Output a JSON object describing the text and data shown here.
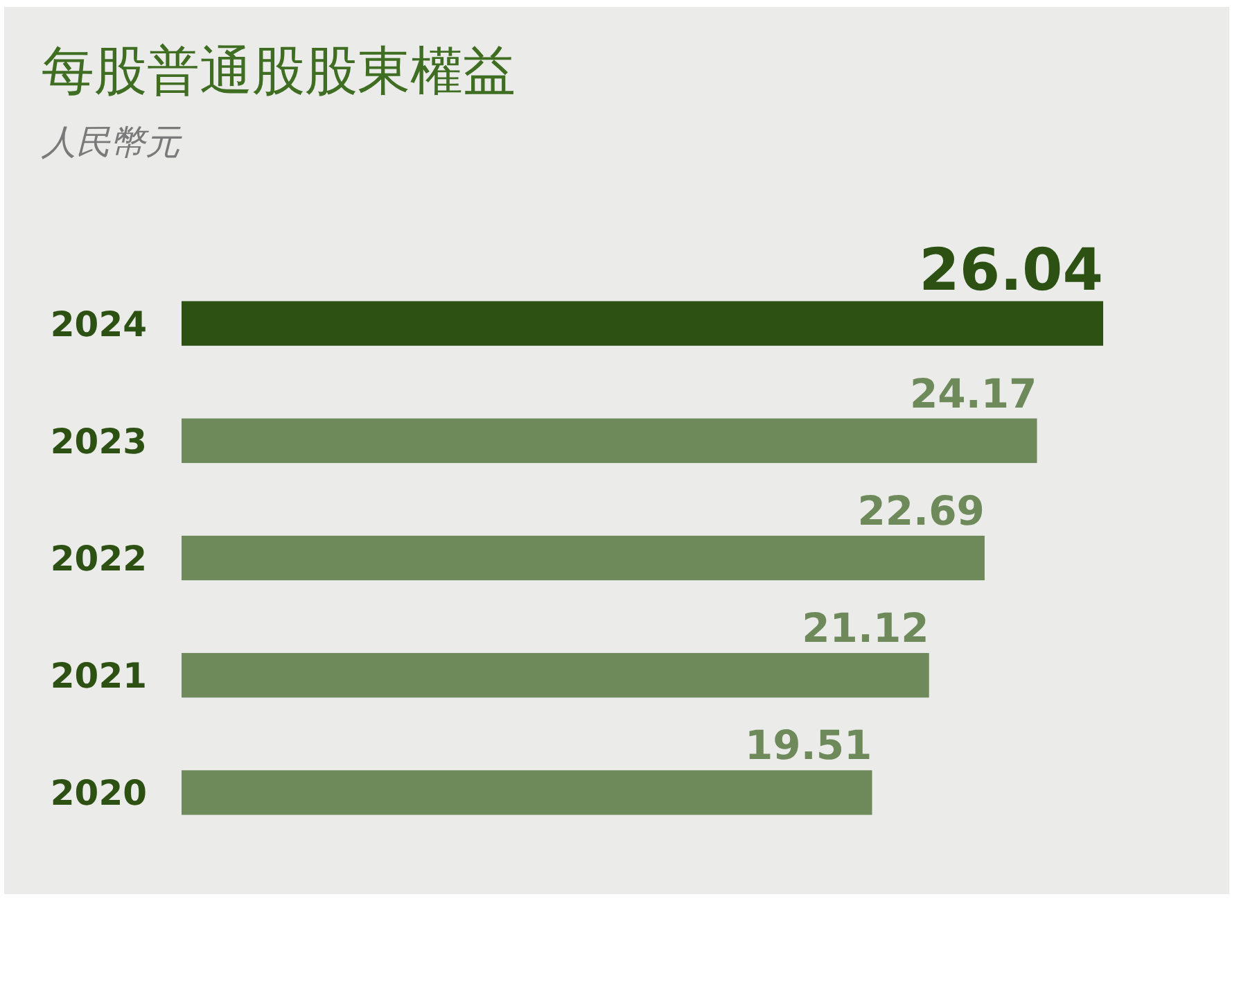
{
  "chart_data": {
    "type": "bar",
    "orientation": "horizontal",
    "title": "每股普通股股東權益",
    "subtitle": "人民幣元",
    "categories": [
      "2024",
      "2023",
      "2022",
      "2021",
      "2020"
    ],
    "values": [
      26.04,
      24.17,
      22.69,
      21.12,
      19.51
    ],
    "colors": [
      "#2d5013",
      "#6e8a5a",
      "#6e8a5a",
      "#6e8a5a",
      "#6e8a5a"
    ],
    "data_labels": true
  }
}
